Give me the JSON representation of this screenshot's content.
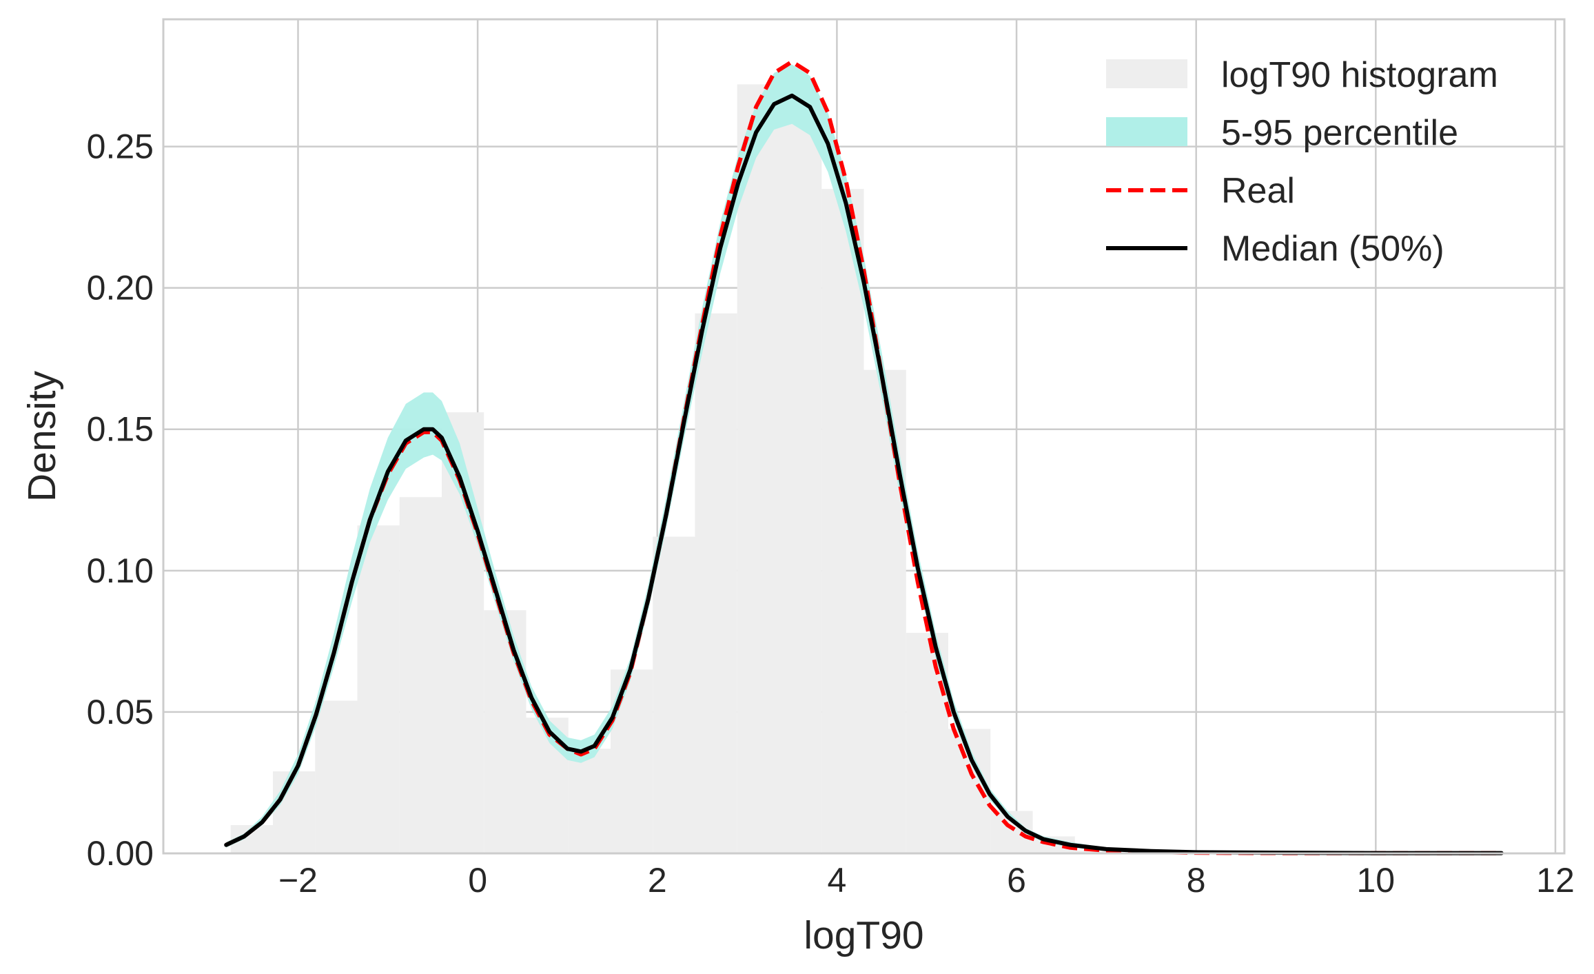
{
  "chart_data": {
    "type": "area",
    "title": "",
    "xlabel": "logT90",
    "ylabel": "Density",
    "xlim": [
      -3.5,
      12.1
    ],
    "ylim": [
      0,
      0.295
    ],
    "grid": true,
    "legend_position": "top-right",
    "x_ticks": [
      -2,
      0,
      2,
      4,
      6,
      8,
      10,
      12
    ],
    "x_tick_labels": [
      "−2",
      "0",
      "2",
      "4",
      "6",
      "8",
      "10",
      "12"
    ],
    "y_ticks": [
      0,
      0.05,
      0.1,
      0.15,
      0.2,
      0.25
    ],
    "y_tick_labels": [
      "0.00",
      "0.05",
      "0.10",
      "0.15",
      "0.20",
      "0.25"
    ],
    "colors": {
      "histogram": "#eeeeee",
      "band": "#b0efe8",
      "real": "#ff0000",
      "median": "#000000",
      "grid": "#cccccc",
      "frame": "#cccccc"
    },
    "histogram": {
      "name": "logT90 histogram",
      "bin_edges": [
        -2.75,
        -2.28,
        -1.81,
        -1.34,
        -0.87,
        -0.4,
        0.07,
        0.54,
        1.01,
        1.48,
        1.95,
        2.42,
        2.89,
        3.36,
        3.83,
        4.3,
        4.77,
        5.24,
        5.71,
        6.18,
        6.65,
        7.12
      ],
      "values": [
        0.01,
        0.029,
        0.054,
        0.116,
        0.126,
        0.156,
        0.086,
        0.048,
        0.037,
        0.065,
        0.112,
        0.191,
        0.272,
        0.266,
        0.235,
        0.171,
        0.078,
        0.044,
        0.015,
        0.006,
        0.001
      ]
    },
    "series": [
      {
        "name": "Real",
        "style": "dashed",
        "x": [
          -2.8,
          -2.6,
          -2.4,
          -2.2,
          -2.0,
          -1.8,
          -1.6,
          -1.4,
          -1.2,
          -1.0,
          -0.8,
          -0.6,
          -0.5,
          -0.4,
          -0.2,
          0.0,
          0.2,
          0.4,
          0.6,
          0.8,
          1.0,
          1.15,
          1.3,
          1.5,
          1.7,
          1.9,
          2.1,
          2.3,
          2.5,
          2.7,
          2.9,
          3.1,
          3.3,
          3.5,
          3.7,
          3.9,
          4.1,
          4.3,
          4.5,
          4.7,
          4.9,
          5.1,
          5.3,
          5.5,
          5.7,
          5.9,
          6.1,
          6.3,
          6.6,
          7.0,
          7.5,
          8.0,
          9.0,
          10.0,
          11.4
        ],
        "values": [
          0.003,
          0.006,
          0.011,
          0.019,
          0.031,
          0.049,
          0.071,
          0.096,
          0.118,
          0.134,
          0.145,
          0.149,
          0.149,
          0.146,
          0.132,
          0.113,
          0.092,
          0.071,
          0.054,
          0.042,
          0.037,
          0.035,
          0.037,
          0.047,
          0.064,
          0.09,
          0.12,
          0.154,
          0.187,
          0.218,
          0.243,
          0.264,
          0.276,
          0.28,
          0.276,
          0.262,
          0.238,
          0.206,
          0.169,
          0.131,
          0.096,
          0.066,
          0.044,
          0.028,
          0.017,
          0.01,
          0.006,
          0.004,
          0.002,
          0.001,
          0.0005,
          0.0002,
          0.0001,
          0.0001,
          0.0001
        ]
      },
      {
        "name": "Median (50%)",
        "style": "solid",
        "x": [
          -2.8,
          -2.6,
          -2.4,
          -2.2,
          -2.0,
          -1.8,
          -1.6,
          -1.4,
          -1.2,
          -1.0,
          -0.8,
          -0.6,
          -0.5,
          -0.4,
          -0.2,
          0.0,
          0.2,
          0.4,
          0.6,
          0.8,
          1.0,
          1.15,
          1.3,
          1.5,
          1.7,
          1.9,
          2.1,
          2.3,
          2.5,
          2.7,
          2.9,
          3.1,
          3.3,
          3.5,
          3.7,
          3.9,
          4.1,
          4.3,
          4.5,
          4.7,
          4.9,
          5.1,
          5.3,
          5.5,
          5.7,
          5.9,
          6.1,
          6.3,
          6.6,
          7.0,
          7.5,
          8.0,
          9.0,
          10.0,
          11.4
        ],
        "values": [
          0.003,
          0.006,
          0.011,
          0.019,
          0.031,
          0.049,
          0.071,
          0.096,
          0.118,
          0.135,
          0.146,
          0.15,
          0.15,
          0.147,
          0.133,
          0.114,
          0.093,
          0.072,
          0.055,
          0.043,
          0.037,
          0.036,
          0.038,
          0.048,
          0.065,
          0.09,
          0.12,
          0.153,
          0.185,
          0.214,
          0.237,
          0.255,
          0.265,
          0.268,
          0.264,
          0.251,
          0.23,
          0.202,
          0.169,
          0.134,
          0.101,
          0.073,
          0.05,
          0.033,
          0.021,
          0.013,
          0.008,
          0.005,
          0.003,
          0.0015,
          0.0008,
          0.0004,
          0.0002,
          0.0001,
          0.0001
        ]
      }
    ],
    "band": {
      "name": "5-95 percentile",
      "x": [
        -2.8,
        -2.6,
        -2.4,
        -2.2,
        -2.0,
        -1.8,
        -1.6,
        -1.4,
        -1.2,
        -1.0,
        -0.8,
        -0.6,
        -0.5,
        -0.4,
        -0.2,
        0.0,
        0.2,
        0.4,
        0.6,
        0.8,
        1.0,
        1.15,
        1.3,
        1.5,
        1.7,
        1.9,
        2.1,
        2.3,
        2.5,
        2.7,
        2.9,
        3.1,
        3.3,
        3.5,
        3.7,
        3.9,
        4.1,
        4.3,
        4.5,
        4.7,
        4.9,
        5.1,
        5.3,
        5.5,
        5.7,
        5.9,
        6.1,
        6.3,
        6.6,
        7.0,
        7.5,
        8.0,
        9.0,
        10.0,
        11.4
      ],
      "lower": [
        0.002,
        0.005,
        0.01,
        0.017,
        0.028,
        0.045,
        0.066,
        0.089,
        0.11,
        0.125,
        0.136,
        0.14,
        0.141,
        0.139,
        0.127,
        0.109,
        0.088,
        0.068,
        0.051,
        0.039,
        0.033,
        0.032,
        0.034,
        0.044,
        0.061,
        0.086,
        0.115,
        0.147,
        0.177,
        0.205,
        0.228,
        0.246,
        0.256,
        0.258,
        0.254,
        0.241,
        0.22,
        0.193,
        0.161,
        0.127,
        0.096,
        0.069,
        0.047,
        0.031,
        0.019,
        0.012,
        0.007,
        0.004,
        0.002,
        0.001,
        0.0005,
        0.0002,
        0.0001,
        0.0,
        0.0
      ],
      "upper": [
        0.004,
        0.007,
        0.013,
        0.022,
        0.035,
        0.054,
        0.078,
        0.105,
        0.129,
        0.147,
        0.159,
        0.163,
        0.163,
        0.16,
        0.145,
        0.122,
        0.099,
        0.077,
        0.059,
        0.047,
        0.041,
        0.04,
        0.042,
        0.052,
        0.069,
        0.095,
        0.126,
        0.16,
        0.193,
        0.223,
        0.247,
        0.265,
        0.276,
        0.279,
        0.275,
        0.262,
        0.24,
        0.211,
        0.177,
        0.141,
        0.107,
        0.078,
        0.054,
        0.036,
        0.023,
        0.015,
        0.009,
        0.006,
        0.004,
        0.002,
        0.001,
        0.0006,
        0.0003,
        0.0002,
        0.0001
      ]
    },
    "legend": [
      {
        "label": "logT90 histogram",
        "kind": "patch-histogram"
      },
      {
        "label": "5-95 percentile",
        "kind": "patch-band"
      },
      {
        "label": "Real",
        "kind": "line-dashed"
      },
      {
        "label": "Median (50%)",
        "kind": "line-solid"
      }
    ]
  }
}
